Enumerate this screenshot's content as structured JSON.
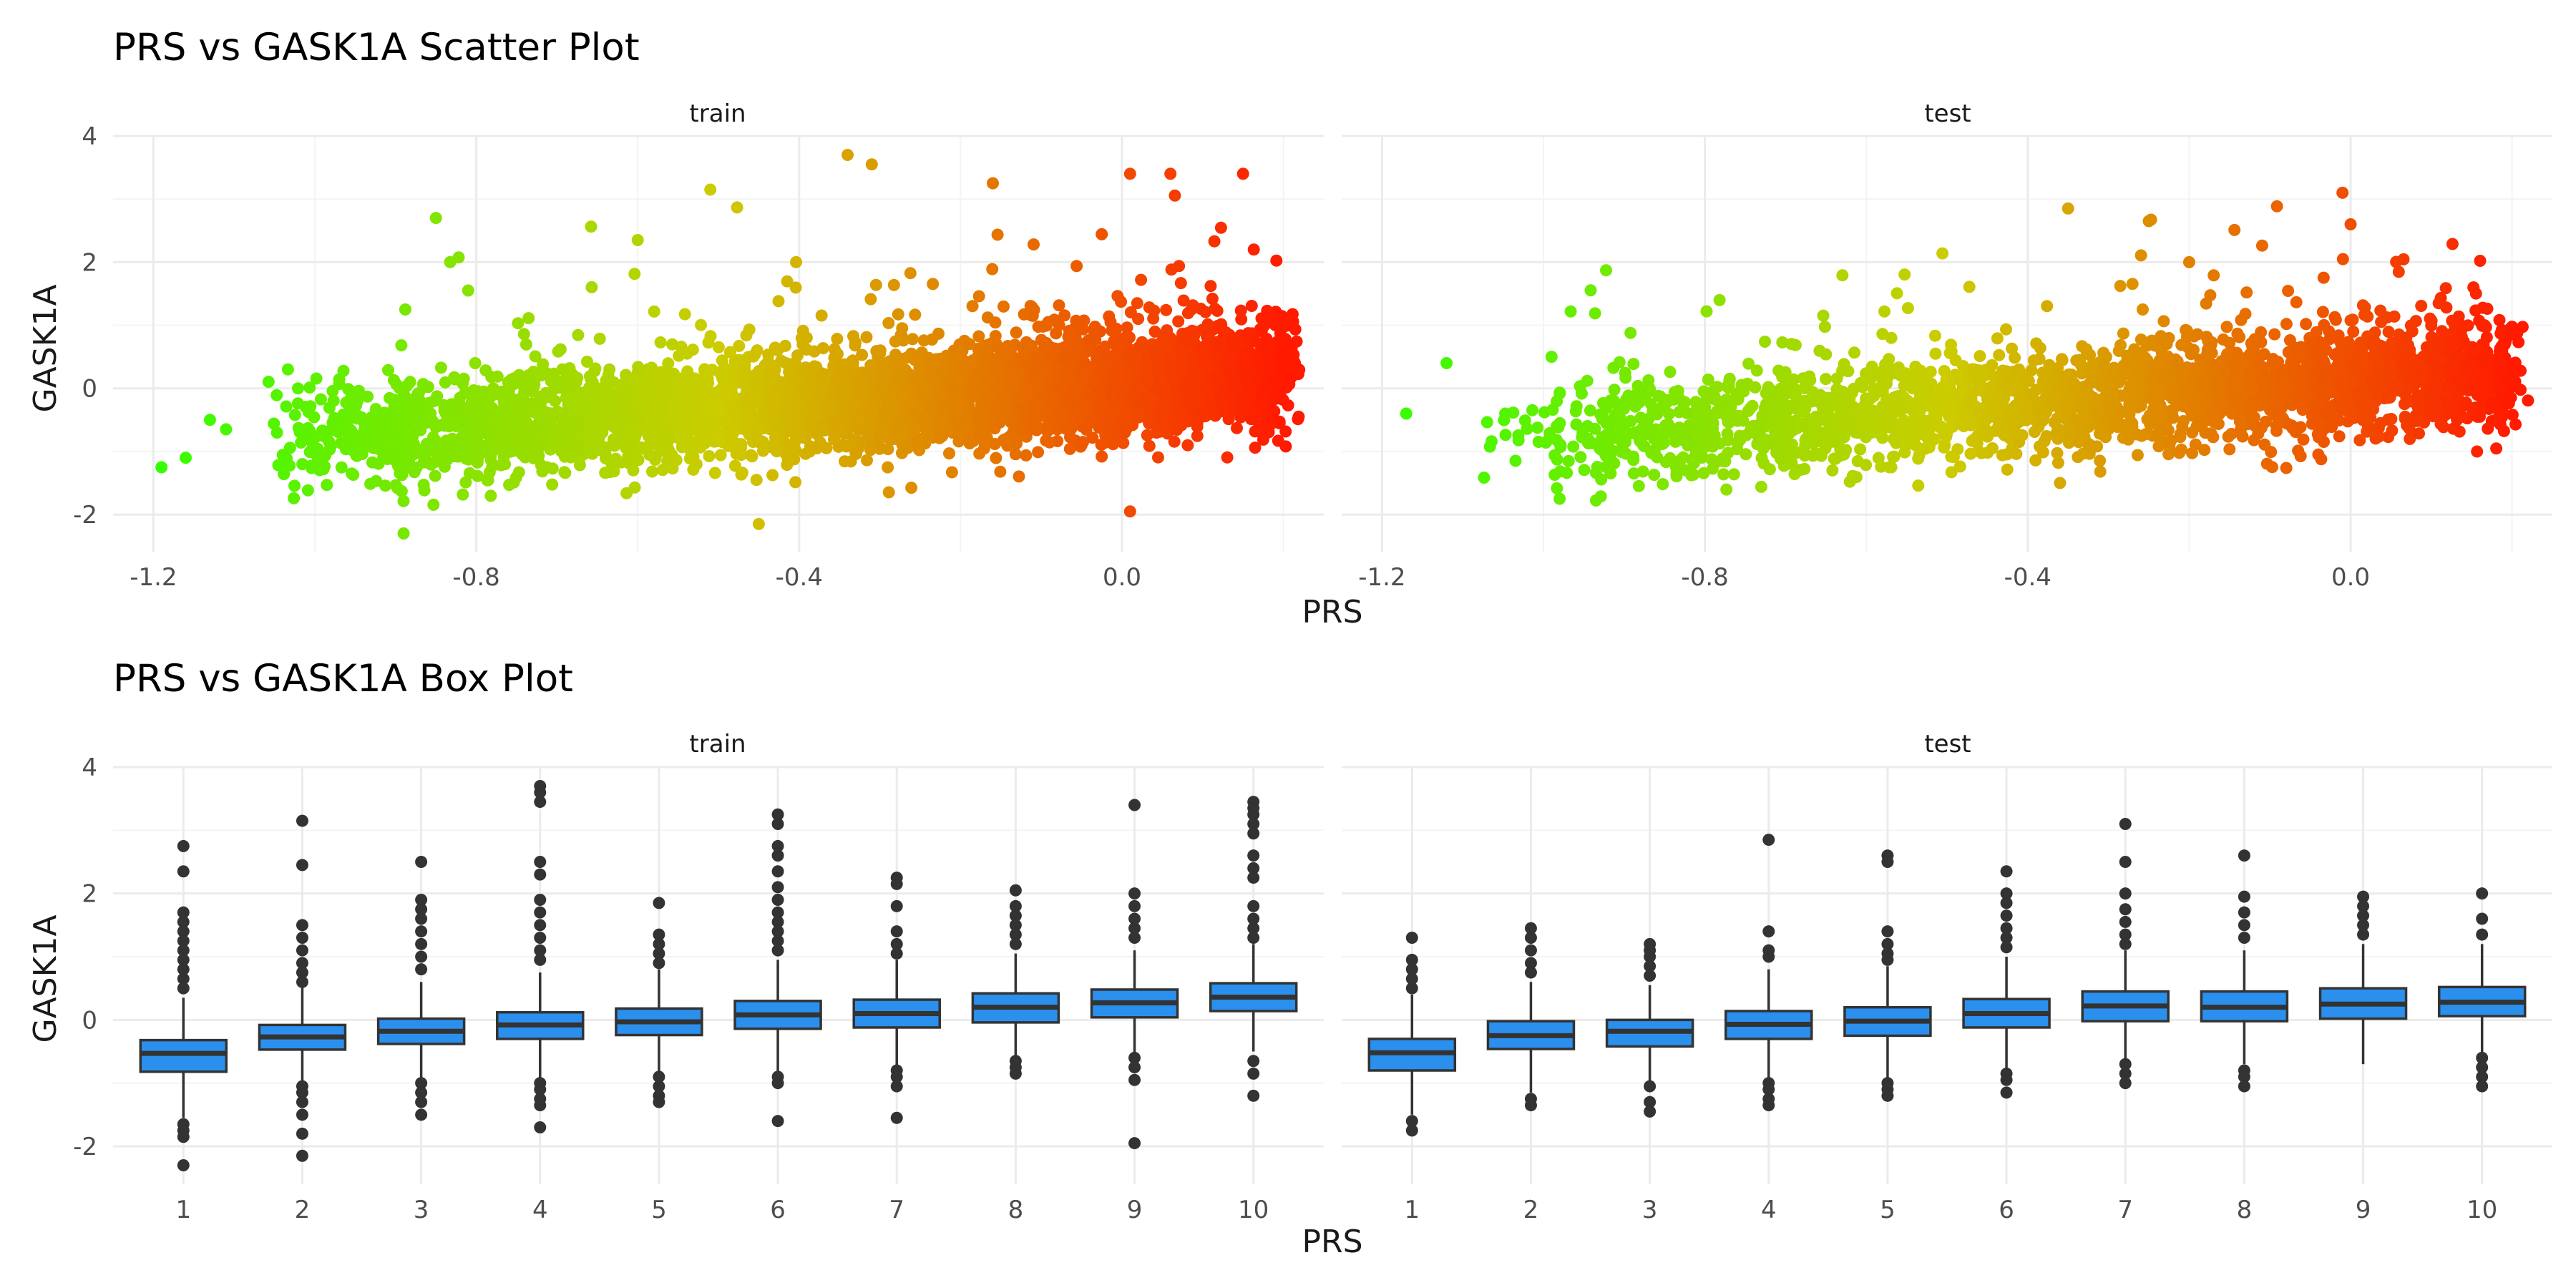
{
  "chart_data": [
    {
      "type": "scatter",
      "title": "PRS vs GASK1A Scatter Plot",
      "xlabel": "PRS",
      "ylabel": "GASK1A",
      "facets": [
        "train",
        "test"
      ],
      "xlim": [
        -1.25,
        0.25
      ],
      "ylim": [
        -2.6,
        4.0
      ],
      "x_ticks": [
        -1.2,
        -0.8,
        -0.4,
        0.0
      ],
      "x_tick_labels": [
        "-1.2",
        "-0.8",
        "-0.4",
        "0.0"
      ],
      "y_ticks": [
        -2,
        0,
        2,
        4
      ],
      "y_tick_labels": [
        "-2",
        "0",
        "2",
        "4"
      ],
      "grid": true,
      "legend": "none",
      "color_scale": {
        "low": "#33ff00",
        "mid": "#cccc00",
        "high": "#ff1a00",
        "mapped_to": "x"
      },
      "trend": {
        "slope": 0.85,
        "intercept": 0.1
      },
      "highlighted_points": {
        "train": [
          {
            "x": -1.19,
            "y": -1.25
          },
          {
            "x": -1.16,
            "y": -1.1
          },
          {
            "x": -1.13,
            "y": -0.5
          },
          {
            "x": -1.11,
            "y": -0.65
          },
          {
            "x": -0.85,
            "y": 2.7
          },
          {
            "x": -0.89,
            "y": -2.3
          },
          {
            "x": -0.81,
            "y": 1.55
          },
          {
            "x": -0.6,
            "y": 2.35
          },
          {
            "x": -0.51,
            "y": 3.15
          },
          {
            "x": -0.45,
            "y": -2.15
          },
          {
            "x": -0.34,
            "y": 3.7
          },
          {
            "x": -0.31,
            "y": 3.55
          },
          {
            "x": -0.16,
            "y": 3.25
          },
          {
            "x": 0.01,
            "y": 3.4
          },
          {
            "x": 0.06,
            "y": 3.4
          },
          {
            "x": 0.15,
            "y": 3.4
          },
          {
            "x": 0.01,
            "y": -1.95
          },
          {
            "x": 0.19,
            "y": 1.0
          },
          {
            "x": 0.19,
            "y": -0.05
          }
        ],
        "test": [
          {
            "x": -1.17,
            "y": -0.4
          },
          {
            "x": -1.12,
            "y": 0.4
          },
          {
            "x": -0.99,
            "y": 0.5
          },
          {
            "x": -0.98,
            "y": -1.75
          },
          {
            "x": -0.36,
            "y": -1.5
          },
          {
            "x": -0.35,
            "y": 2.85
          },
          {
            "x": -0.25,
            "y": 2.65
          },
          {
            "x": -0.2,
            "y": 2.0
          },
          {
            "x": -0.01,
            "y": 3.1
          },
          {
            "x": 0.0,
            "y": 2.6
          },
          {
            "x": -0.04,
            "y": -1.05
          },
          {
            "x": 0.2,
            "y": 0.35
          },
          {
            "x": 0.16,
            "y": -0.45
          }
        ]
      }
    },
    {
      "type": "box",
      "title": "PRS vs GASK1A Box Plot",
      "xlabel": "PRS",
      "ylabel": "GASK1A",
      "facets": [
        "train",
        "test"
      ],
      "categories": [
        "1",
        "2",
        "3",
        "4",
        "5",
        "6",
        "7",
        "8",
        "9",
        "10"
      ],
      "ylim": [
        -2.6,
        4.0
      ],
      "y_ticks": [
        -2,
        0,
        2,
        4
      ],
      "y_tick_labels": [
        "-2",
        "0",
        "2",
        "4"
      ],
      "grid": true,
      "box_fill": "#2b8fee",
      "box_stroke": "#333333",
      "series": [
        {
          "facet": "train",
          "boxes": [
            {
              "category": "1",
              "q1": -0.82,
              "median": -0.53,
              "q3": -0.32,
              "whisker_low": -1.55,
              "whisker_high": 0.35
            },
            {
              "category": "2",
              "q1": -0.47,
              "median": -0.27,
              "q3": -0.08,
              "whisker_low": -1.05,
              "whisker_high": 0.55
            },
            {
              "category": "3",
              "q1": -0.38,
              "median": -0.18,
              "q3": 0.02,
              "whisker_low": -0.95,
              "whisker_high": 0.6
            },
            {
              "category": "4",
              "q1": -0.3,
              "median": -0.08,
              "q3": 0.12,
              "whisker_low": -0.95,
              "whisker_high": 0.75
            },
            {
              "category": "5",
              "q1": -0.24,
              "median": -0.03,
              "q3": 0.18,
              "whisker_low": -0.85,
              "whisker_high": 0.8
            },
            {
              "category": "6",
              "q1": -0.14,
              "median": 0.08,
              "q3": 0.3,
              "whisker_low": -0.85,
              "whisker_high": 0.95
            },
            {
              "category": "7",
              "q1": -0.12,
              "median": 0.1,
              "q3": 0.32,
              "whisker_low": -0.75,
              "whisker_high": 0.95
            },
            {
              "category": "8",
              "q1": -0.04,
              "median": 0.2,
              "q3": 0.42,
              "whisker_low": -0.6,
              "whisker_high": 1.05
            },
            {
              "category": "9",
              "q1": 0.04,
              "median": 0.27,
              "q3": 0.48,
              "whisker_low": -0.55,
              "whisker_high": 1.1
            },
            {
              "category": "10",
              "q1": 0.14,
              "median": 0.36,
              "q3": 0.58,
              "whisker_low": -0.5,
              "whisker_high": 1.2
            }
          ],
          "outliers": {
            "1": [
              2.75,
              2.35,
              1.7,
              1.55,
              1.4,
              1.25,
              1.1,
              0.95,
              0.8,
              0.65,
              0.5,
              -1.65,
              -1.75,
              -1.85,
              -2.3
            ],
            "2": [
              3.15,
              2.45,
              1.5,
              1.3,
              1.1,
              0.9,
              0.75,
              0.6,
              -1.05,
              -1.15,
              -1.3,
              -1.5,
              -1.8,
              -2.15
            ],
            "3": [
              2.5,
              1.9,
              1.75,
              1.6,
              1.4,
              1.2,
              1.0,
              0.8,
              -1.0,
              -1.15,
              -1.3,
              -1.5
            ],
            "4": [
              3.7,
              3.6,
              3.45,
              2.5,
              2.3,
              1.9,
              1.7,
              1.5,
              1.3,
              1.1,
              0.95,
              -1.0,
              -1.1,
              -1.25,
              -1.35,
              -1.7
            ],
            "5": [
              1.85,
              1.35,
              1.2,
              1.05,
              0.9,
              -0.9,
              -1.05,
              -1.2,
              -1.3
            ],
            "6": [
              3.25,
              3.1,
              2.75,
              2.6,
              2.35,
              2.1,
              1.9,
              1.7,
              1.55,
              1.4,
              1.25,
              1.1,
              -0.9,
              -1.0,
              -1.6
            ],
            "7": [
              2.25,
              2.15,
              1.8,
              1.4,
              1.2,
              1.05,
              -0.8,
              -0.9,
              -1.05,
              -1.55
            ],
            "8": [
              2.05,
              1.8,
              1.65,
              1.5,
              1.35,
              1.2,
              -0.65,
              -0.75,
              -0.85
            ],
            "9": [
              3.4,
              2.0,
              1.8,
              1.6,
              1.45,
              1.3,
              -0.6,
              -0.75,
              -0.95,
              -1.95
            ],
            "10": [
              3.45,
              3.35,
              3.25,
              3.1,
              2.95,
              2.6,
              2.4,
              2.25,
              1.8,
              1.6,
              1.45,
              1.3,
              -0.65,
              -0.85,
              -1.2
            ]
          }
        },
        {
          "facet": "test",
          "boxes": [
            {
              "category": "1",
              "q1": -0.8,
              "median": -0.52,
              "q3": -0.3,
              "whisker_low": -1.5,
              "whisker_high": 0.4
            },
            {
              "category": "2",
              "q1": -0.46,
              "median": -0.25,
              "q3": -0.02,
              "whisker_low": -1.15,
              "whisker_high": 0.6
            },
            {
              "category": "3",
              "q1": -0.42,
              "median": -0.18,
              "q3": 0.0,
              "whisker_low": -1.0,
              "whisker_high": 0.55
            },
            {
              "category": "4",
              "q1": -0.3,
              "median": -0.07,
              "q3": 0.14,
              "whisker_low": -0.95,
              "whisker_high": 0.8
            },
            {
              "category": "5",
              "q1": -0.25,
              "median": -0.02,
              "q3": 0.2,
              "whisker_low": -0.95,
              "whisker_high": 0.85
            },
            {
              "category": "6",
              "q1": -0.12,
              "median": 0.1,
              "q3": 0.33,
              "whisker_low": -0.8,
              "whisker_high": 1.0
            },
            {
              "category": "7",
              "q1": -0.02,
              "median": 0.22,
              "q3": 0.45,
              "whisker_low": -0.65,
              "whisker_high": 1.1
            },
            {
              "category": "8",
              "q1": -0.02,
              "median": 0.2,
              "q3": 0.45,
              "whisker_low": -0.7,
              "whisker_high": 1.1
            },
            {
              "category": "9",
              "q1": 0.02,
              "median": 0.25,
              "q3": 0.5,
              "whisker_low": -0.7,
              "whisker_high": 1.2
            },
            {
              "category": "10",
              "q1": 0.06,
              "median": 0.28,
              "q3": 0.52,
              "whisker_low": -0.55,
              "whisker_high": 1.2
            }
          ],
          "outliers": {
            "1": [
              1.3,
              0.95,
              0.8,
              0.65,
              0.5,
              -1.6,
              -1.75
            ],
            "2": [
              1.45,
              1.3,
              1.1,
              0.9,
              0.75,
              -1.25,
              -1.35
            ],
            "3": [
              1.2,
              1.1,
              1.0,
              0.85,
              0.7,
              -1.05,
              -1.3,
              -1.45
            ],
            "4": [
              2.85,
              1.4,
              1.1,
              1.0,
              -1.0,
              -1.1,
              -1.25,
              -1.35
            ],
            "5": [
              2.6,
              2.5,
              1.4,
              1.2,
              1.05,
              0.95,
              -1.0,
              -1.1,
              -1.2
            ],
            "6": [
              2.35,
              2.0,
              1.85,
              1.65,
              1.45,
              1.3,
              1.15,
              -0.85,
              -0.95,
              -1.15
            ],
            "7": [
              3.1,
              2.5,
              2.0,
              1.75,
              1.55,
              1.35,
              1.2,
              -0.7,
              -0.85,
              -1.0
            ],
            "8": [
              2.6,
              1.95,
              1.7,
              1.5,
              1.3,
              -0.8,
              -0.9,
              -1.05
            ],
            "9": [
              1.95,
              1.8,
              1.65,
              1.5,
              1.35
            ],
            "10": [
              2.0,
              1.6,
              1.35,
              -0.6,
              -0.75,
              -0.9,
              -1.05
            ]
          }
        }
      ]
    }
  ]
}
